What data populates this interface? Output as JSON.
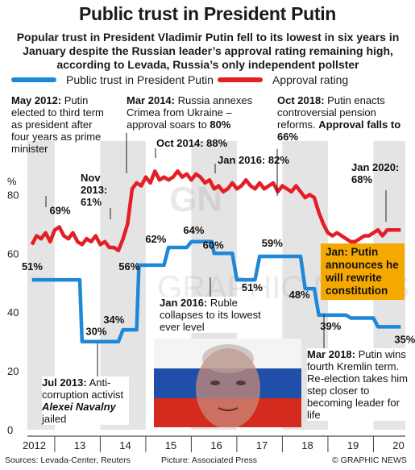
{
  "title": "Public trust in President Putin",
  "subtitle": "Popular trust in President Vladimir Putin fell to its lowest in six years in January despite the Russian leader’s approval rating remaining high, according to Levada, Russia’s only independent pollster",
  "colors": {
    "trust": "#1e88d8",
    "approval": "#e31e24",
    "callout": "#f5a800",
    "band": "#e4e4e4"
  },
  "annotations": {
    "may2012": {
      "head": "May 2012:",
      "body": "Putin elected to third term as president after four years as prime minister"
    },
    "nov2013": "Nov 2013: 61%",
    "mar2014": {
      "head": "Mar 2014:",
      "body": "Russia annexes Crimea from Ukraine – approval soars to",
      "value": "80%"
    },
    "oct2014": "Oct 2014: 88%",
    "jan2016a": "Jan 2016: 82%",
    "oct2018": {
      "head": "Oct 2018:",
      "body": "Putin enacts controversial pension reforms.",
      "value": "Approval falls to 66%"
    },
    "jan2020": "Jan 2020: 68%",
    "callout": "Jan: Putin announces he will rewrite constitution",
    "jan2016b": {
      "head": "Jan 2016:",
      "body": "Ruble collapses to its lowest ever level"
    },
    "jul2013": {
      "head": "Jul 2013:",
      "body": "Anti-corruption activist",
      "name": "Alexei Navalny",
      "tail": "jailed"
    },
    "mar2018": {
      "head": "Mar 2018:",
      "body": "Putin wins fourth Kremlin term. Re-election takes him step closer to becoming leader for life"
    }
  },
  "photo_watermark": "GN GRAPHIC NEWS",
  "footer": {
    "sources": "Sources: Levada-Center, Reuters",
    "picture": "Picture: Associated Press",
    "credit": "© GRAPHIC NEWS"
  },
  "chart_data": {
    "type": "line",
    "title": "Public trust in President Putin",
    "ylabel": "%",
    "ylim": [
      0,
      90
    ],
    "yticks": [
      0,
      20,
      40,
      60,
      80
    ],
    "grid": false,
    "legend_position": "top",
    "x_categories": [
      "2012",
      "13",
      "14",
      "15",
      "16",
      "17",
      "18",
      "19",
      "20"
    ],
    "series": [
      {
        "name": "Public trust in President Putin",
        "color": "#1e88d8",
        "x": [
          2012.0,
          2013.05,
          2013.1,
          2013.9,
          2014.0,
          2014.3,
          2014.35,
          2014.9,
          2015.0,
          2015.4,
          2015.5,
          2015.95,
          2016.0,
          2016.4,
          2016.5,
          2016.9,
          2017.0,
          2017.9,
          2018.0,
          2018.2,
          2018.3,
          2018.9,
          2019.0,
          2019.5,
          2019.6,
          2020.0,
          2020.1
        ],
        "y": [
          51,
          51,
          30,
          30,
          34,
          34,
          56,
          56,
          62,
          62,
          64,
          64,
          60,
          60,
          51,
          51,
          59,
          59,
          48,
          48,
          39,
          39,
          38,
          38,
          35,
          35,
          35
        ],
        "point_labels": [
          {
            "x": 2012.2,
            "y": 51,
            "label": "51%"
          },
          {
            "x": 2013.5,
            "y": 30,
            "label": "30%"
          },
          {
            "x": 2014.1,
            "y": 34,
            "label": "34%"
          },
          {
            "x": 2014.4,
            "y": 56,
            "label": "56%"
          },
          {
            "x": 2014.95,
            "y": 62,
            "label": "62%"
          },
          {
            "x": 2015.5,
            "y": 64,
            "label": "64%"
          },
          {
            "x": 2016.0,
            "y": 60,
            "label": "60%"
          },
          {
            "x": 2016.5,
            "y": 51,
            "label": "51%"
          },
          {
            "x": 2017.4,
            "y": 59,
            "label": "59%"
          },
          {
            "x": 2018.0,
            "y": 48,
            "label": "48%"
          },
          {
            "x": 2018.4,
            "y": 39,
            "label": "39%"
          },
          {
            "x": 2020.1,
            "y": 35,
            "label": "35%"
          }
        ]
      },
      {
        "name": "Approval rating",
        "color": "#e31e24",
        "x": [
          2012.0,
          2012.1,
          2012.2,
          2012.3,
          2012.4,
          2012.5,
          2012.6,
          2012.7,
          2012.8,
          2012.9,
          2013.0,
          2013.1,
          2013.2,
          2013.3,
          2013.4,
          2013.5,
          2013.6,
          2013.7,
          2013.8,
          2013.9,
          2014.0,
          2014.1,
          2014.2,
          2014.3,
          2014.4,
          2014.5,
          2014.6,
          2014.7,
          2014.8,
          2014.9,
          2015.0,
          2015.1,
          2015.2,
          2015.3,
          2015.4,
          2015.5,
          2015.6,
          2015.7,
          2015.8,
          2015.9,
          2016.0,
          2016.1,
          2016.2,
          2016.3,
          2016.4,
          2016.5,
          2016.6,
          2016.7,
          2016.8,
          2016.9,
          2017.0,
          2017.1,
          2017.2,
          2017.3,
          2017.4,
          2017.5,
          2017.6,
          2017.7,
          2017.8,
          2017.9,
          2018.0,
          2018.1,
          2018.2,
          2018.3,
          2018.4,
          2018.5,
          2018.6,
          2018.7,
          2018.8,
          2018.9,
          2019.0,
          2019.1,
          2019.2,
          2019.3,
          2019.4,
          2019.5,
          2019.6,
          2019.7,
          2019.8,
          2019.9,
          2020.0,
          2020.1
        ],
        "y": [
          63,
          66,
          65,
          67,
          64,
          68,
          69,
          66,
          65,
          67,
          64,
          63,
          65,
          64,
          66,
          63,
          64,
          62,
          62,
          61,
          65,
          70,
          82,
          84,
          83,
          86,
          84,
          88,
          85,
          86,
          85,
          86,
          88,
          86,
          87,
          85,
          87,
          86,
          84,
          85,
          82,
          83,
          81,
          82,
          84,
          82,
          83,
          85,
          83,
          82,
          84,
          82,
          83,
          84,
          81,
          83,
          82,
          81,
          83,
          81,
          79,
          80,
          79,
          74,
          70,
          67,
          66,
          67,
          66,
          65,
          64,
          64,
          65,
          66,
          66,
          67,
          68,
          66,
          68,
          68,
          68,
          68
        ],
        "point_labels": [
          {
            "x": 2012.6,
            "y": 69,
            "label": "69%"
          }
        ]
      }
    ]
  }
}
